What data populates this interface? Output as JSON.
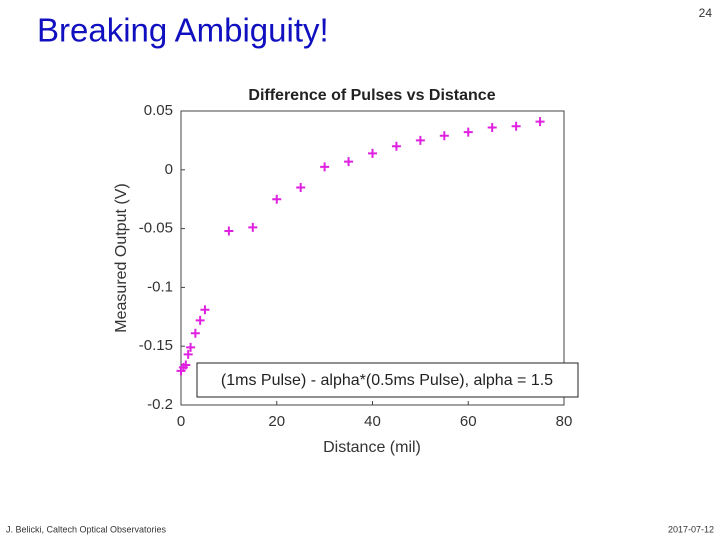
{
  "slide": {
    "title": "Breaking Ambiguity!",
    "page_number": "24",
    "footer_left": "J. Belicki, Caltech Optical Observatories",
    "footer_right": "2017-07-12"
  },
  "chart_data": {
    "type": "scatter",
    "title": "Difference of Pulses vs Distance",
    "x_label": "Distance (mil)",
    "y_label": "Measured Output (V)",
    "annotation": "(1ms Pulse) - alpha*(0.5ms Pulse), alpha = 1.5",
    "series": [
      {
        "name": "",
        "color": "#e020e0",
        "x": [
          0,
          0.5,
          1,
          1.5,
          2,
          3,
          4,
          5,
          10,
          15,
          20,
          25,
          30,
          35,
          40,
          45,
          50,
          55,
          60,
          65,
          70,
          75
        ],
        "values": [
          -0.171,
          -0.168,
          -0.166,
          -0.157,
          -0.151,
          -0.139,
          -0.128,
          -0.119,
          -0.052,
          -0.049,
          -0.025,
          -0.015,
          0.0025,
          0.007,
          0.014,
          0.02,
          0.025,
          0.029,
          0.032,
          0.036,
          0.037,
          0.041
        ]
      }
    ],
    "xlim": [
      0,
      80
    ],
    "xticks": [
      0,
      20,
      40,
      60,
      80
    ],
    "ylim": [
      -0.2,
      0.05
    ],
    "yticks": [
      0.05,
      0,
      -0.05,
      -0.1,
      -0.15,
      -0.2
    ]
  }
}
